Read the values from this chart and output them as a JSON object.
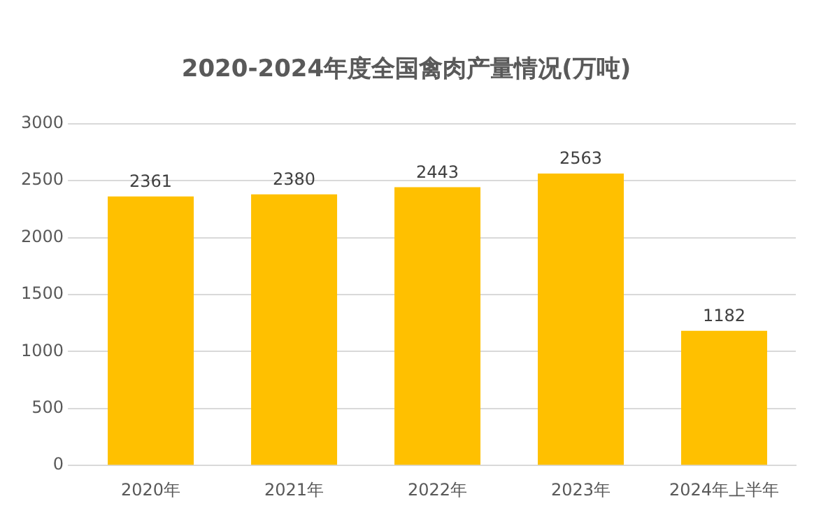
{
  "chart_data": {
    "type": "bar",
    "title": "2020-2024年度全国禽肉产量情况(万吨)",
    "categories": [
      "2020年",
      "2021年",
      "2022年",
      "2023年",
      "2024年上半年"
    ],
    "values": [
      2361,
      2380,
      2443,
      2563,
      1182
    ],
    "color": "#ffc000",
    "ylim": [
      0,
      3000
    ],
    "yticks": [
      0,
      500,
      1000,
      1500,
      2000,
      2500,
      3000
    ],
    "grid": "y",
    "data_labels": true,
    "legend": false
  }
}
